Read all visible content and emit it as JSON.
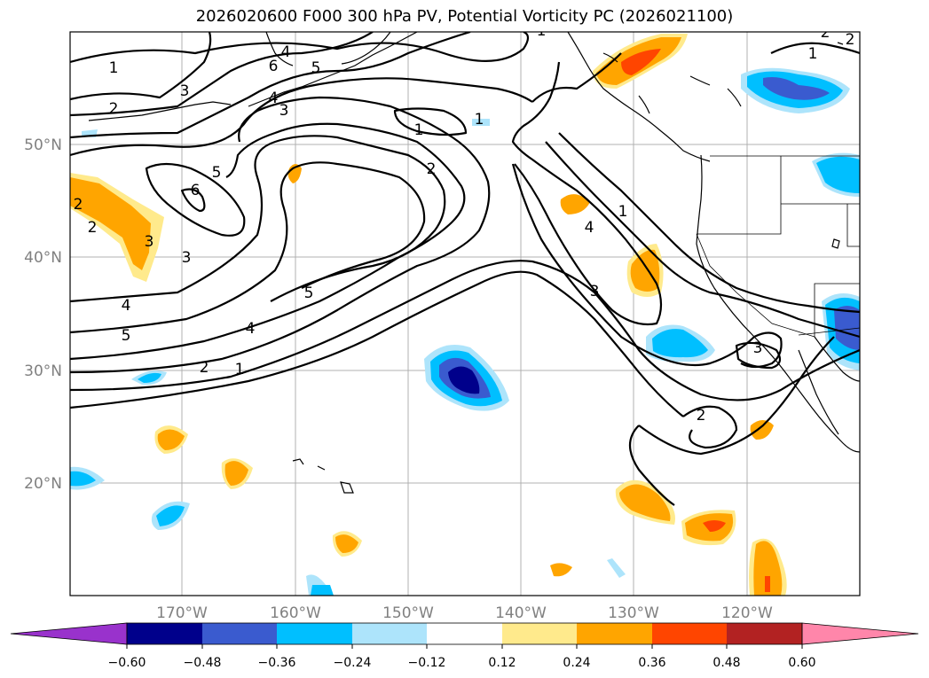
{
  "title": "2026020600 F000 300 hPa PV, Potential Vorticity PC (2026021100)",
  "axes": {
    "lat_labels": [
      "50°N",
      "40°N",
      "30°N",
      "20°N"
    ],
    "lon_labels": [
      "170°W",
      "160°W",
      "150°W",
      "140°W",
      "130°W",
      "120°W"
    ]
  },
  "contour_labels": [
    "1",
    "2",
    "3",
    "4",
    "5",
    "6",
    "1",
    "2",
    "3",
    "4",
    "5",
    "6",
    "1",
    "2",
    "1",
    "2",
    "3",
    "4",
    "5",
    "1",
    "2",
    "3",
    "4",
    "5",
    "1",
    "2",
    "3",
    "4",
    "3",
    "2",
    "1",
    "2"
  ],
  "colorbar": {
    "ticks": [
      "−0.60",
      "−0.48",
      "−0.36",
      "−0.24",
      "−0.12",
      "0.12",
      "0.24",
      "0.36",
      "0.48",
      "0.60"
    ],
    "colors": [
      "#9932cc",
      "#00008b",
      "#3a5bcf",
      "#00bfff",
      "#ade4fb",
      "#ffffff",
      "#ffea8c",
      "#ffa500",
      "#ff4500",
      "#b22222",
      "#ff86aa"
    ]
  },
  "fill_colors": {
    "neg1": "#ade4fb",
    "neg2": "#00bfff",
    "neg3": "#3a5bcf",
    "neg4": "#00008b",
    "pos1": "#ffea8c",
    "pos2": "#ffa500",
    "pos3": "#ff4500"
  }
}
